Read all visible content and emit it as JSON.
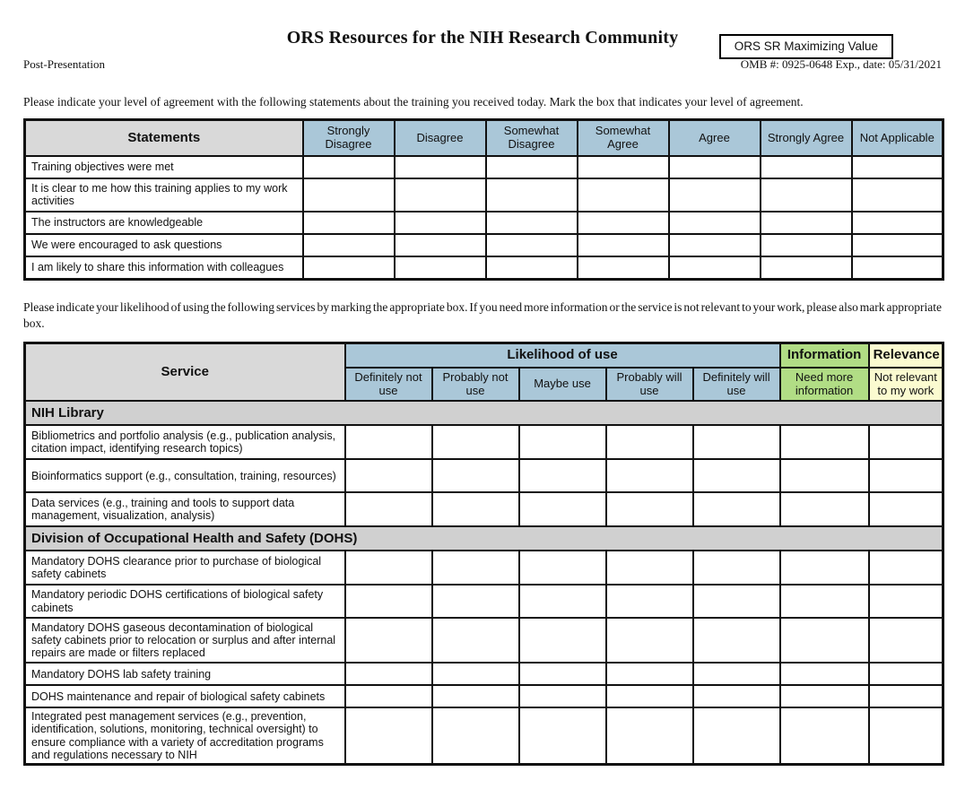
{
  "header": {
    "corner_box": "ORS SR Maximizing Value",
    "title": "ORS Resources for the NIH Research Community",
    "phase_label": "Post-Presentation",
    "omb_label": "OMB #: 0925-0648 Exp., date: 05/31/2021"
  },
  "agreement": {
    "instructions": "Please indicate your level of agreement with the following statements about the training you received today. Mark the box that indicates your level of agreement.",
    "col_header_statements": "Statements",
    "columns": [
      "Strongly Disagree",
      "Disagree",
      "Somewhat Disagree",
      "Somewhat Agree",
      "Agree",
      "Strongly Agree",
      "Not Applicable"
    ],
    "statements": [
      "Training objectives were met",
      "It is clear to me how this training applies to my work activities",
      "The instructors are knowledgeable",
      "We were encouraged to ask questions",
      "I am likely to share this information with colleagues"
    ]
  },
  "services": {
    "instructions": "Please indicate your likelihood of using the following services by marking the appropriate box. If you need more information or the service is not relevant to your work, please also mark appropriate box.",
    "col_header_service": "Service",
    "group_headers": {
      "likelihood": "Likelihood of use",
      "information": "Information",
      "relevance": "Relevance"
    },
    "likelihood_columns": [
      "Definitely not use",
      "Probably not use",
      "Maybe use",
      "Probably will use",
      "Definitely will use"
    ],
    "information_column": "Need more information",
    "relevance_column": "Not relevant to my work",
    "sections": [
      {
        "title": "NIH Library",
        "rows": [
          "Bibliometrics and portfolio analysis (e.g., publication analysis, citation impact, identifying research topics)",
          "Bioinformatics support (e.g., consultation, training, resources)",
          "Data services (e.g., training and tools to support data management, visualization, analysis)"
        ]
      },
      {
        "title": "Division of Occupational Health and Safety (DOHS)",
        "rows": [
          "Mandatory DOHS clearance prior to purchase of biological safety cabinets",
          "Mandatory periodic DOHS certifications of biological safety cabinets",
          "Mandatory DOHS gaseous decontamination of biological safety cabinets prior to relocation or surplus and after internal repairs are made or filters replaced",
          "Mandatory DOHS lab safety training",
          "DOHS maintenance and repair of biological safety cabinets",
          "Integrated pest management services (e.g., prevention, identification, solutions, monitoring, technical oversight) to ensure compliance with a variety of accreditation programs and regulations necessary to NIH"
        ]
      }
    ]
  },
  "colors": {
    "header_blue": "#aac7d8",
    "header_green": "#b1dd85",
    "header_yellow": "#fbfbd0",
    "header_gray": "#d9d9d9",
    "section_gray": "#d0d0d0"
  }
}
